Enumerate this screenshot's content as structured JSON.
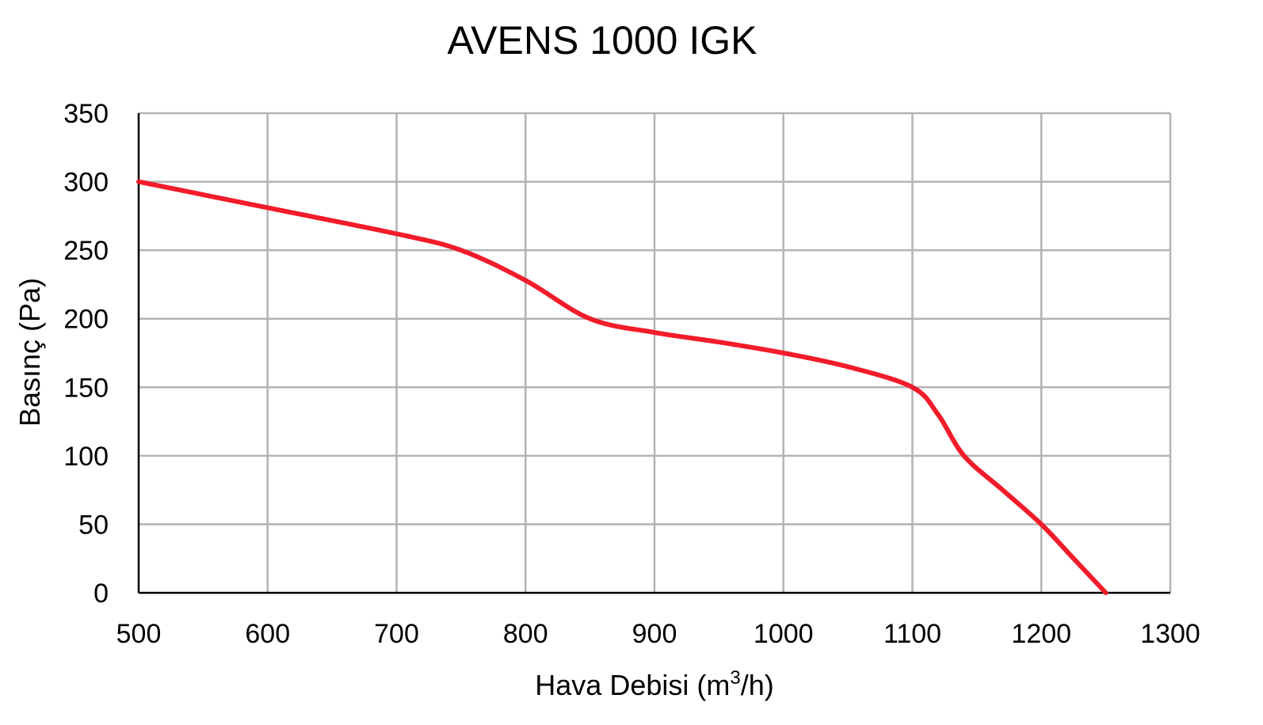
{
  "chart_data": {
    "type": "line",
    "title": "AVENS 1000 IGK",
    "xlabel": "Hava Debisi (m³/h)",
    "xlabel_parts": {
      "before": "Hava Debisi (m",
      "sup": "3",
      "after": "/h)"
    },
    "ylabel": "Basınç (Pa)",
    "xlim": [
      500,
      1300
    ],
    "ylim": [
      0,
      350
    ],
    "x_ticks": [
      500,
      600,
      700,
      800,
      900,
      1000,
      1100,
      1200,
      1300
    ],
    "y_ticks": [
      0,
      50,
      100,
      150,
      200,
      250,
      300,
      350
    ],
    "grid": true,
    "legend": "none",
    "series": [
      {
        "color": "#f21c2a",
        "points": [
          [
            500,
            300
          ],
          [
            600,
            281
          ],
          [
            700,
            262
          ],
          [
            750,
            250
          ],
          [
            800,
            228
          ],
          [
            850,
            200
          ],
          [
            900,
            190
          ],
          [
            950,
            183
          ],
          [
            1000,
            175
          ],
          [
            1050,
            165
          ],
          [
            1100,
            150
          ],
          [
            1120,
            130
          ],
          [
            1140,
            100
          ],
          [
            1170,
            75
          ],
          [
            1200,
            50
          ],
          [
            1225,
            25
          ],
          [
            1250,
            0
          ]
        ]
      }
    ]
  }
}
